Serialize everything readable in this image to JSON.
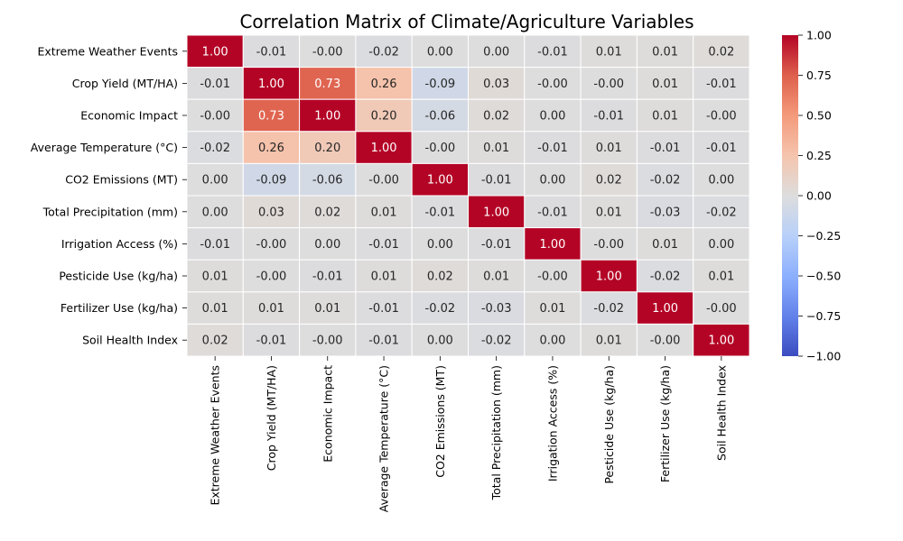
{
  "chart_data": {
    "type": "heatmap",
    "title": "Correlation Matrix of Climate/Agriculture Variables",
    "variables": [
      "Extreme Weather Events",
      "Crop Yield (MT/HA)",
      "Economic Impact",
      "Average Temperature (°C)",
      "CO2 Emissions (MT)",
      "Total Precipitation (mm)",
      "Irrigation Access (%)",
      "Pesticide Use (kg/ha)",
      "Fertilizer Use (kg/ha)",
      "Soil Health Index"
    ],
    "values": [
      [
        1.0,
        -0.01,
        -0.0,
        -0.02,
        0.0,
        0.0,
        -0.01,
        0.01,
        0.01,
        0.02
      ],
      [
        -0.01,
        1.0,
        0.73,
        0.26,
        -0.09,
        0.03,
        -0.0,
        -0.0,
        0.01,
        -0.01
      ],
      [
        -0.0,
        0.73,
        1.0,
        0.2,
        -0.06,
        0.02,
        0.0,
        -0.01,
        0.01,
        -0.0
      ],
      [
        -0.02,
        0.26,
        0.2,
        1.0,
        -0.0,
        0.01,
        -0.01,
        0.01,
        -0.01,
        -0.01
      ],
      [
        0.0,
        -0.09,
        -0.06,
        -0.0,
        1.0,
        -0.01,
        0.0,
        0.02,
        -0.02,
        0.0
      ],
      [
        0.0,
        0.03,
        0.02,
        0.01,
        -0.01,
        1.0,
        -0.01,
        0.01,
        -0.03,
        -0.02
      ],
      [
        -0.01,
        -0.0,
        0.0,
        -0.01,
        0.0,
        -0.01,
        1.0,
        -0.0,
        0.01,
        0.0
      ],
      [
        0.01,
        -0.0,
        -0.01,
        0.01,
        0.02,
        0.01,
        -0.0,
        1.0,
        -0.02,
        0.01
      ],
      [
        0.01,
        0.01,
        0.01,
        -0.01,
        -0.02,
        -0.03,
        0.01,
        -0.02,
        1.0,
        -0.0
      ],
      [
        0.02,
        -0.01,
        -0.0,
        -0.01,
        0.0,
        -0.02,
        0.0,
        0.01,
        -0.0,
        1.0
      ]
    ],
    "value_labels": [
      [
        "1.00",
        "-0.01",
        "-0.00",
        "-0.02",
        "0.00",
        "0.00",
        "-0.01",
        "0.01",
        "0.01",
        "0.02"
      ],
      [
        "-0.01",
        "1.00",
        "0.73",
        "0.26",
        "-0.09",
        "0.03",
        "-0.00",
        "-0.00",
        "0.01",
        "-0.01"
      ],
      [
        "-0.00",
        "0.73",
        "1.00",
        "0.20",
        "-0.06",
        "0.02",
        "0.00",
        "-0.01",
        "0.01",
        "-0.00"
      ],
      [
        "-0.02",
        "0.26",
        "0.20",
        "1.00",
        "-0.00",
        "0.01",
        "-0.01",
        "0.01",
        "-0.01",
        "-0.01"
      ],
      [
        "0.00",
        "-0.09",
        "-0.06",
        "-0.00",
        "1.00",
        "-0.01",
        "0.00",
        "0.02",
        "-0.02",
        "0.00"
      ],
      [
        "0.00",
        "0.03",
        "0.02",
        "0.01",
        "-0.01",
        "1.00",
        "-0.01",
        "0.01",
        "-0.03",
        "-0.02"
      ],
      [
        "-0.01",
        "-0.00",
        "0.00",
        "-0.01",
        "0.00",
        "-0.01",
        "1.00",
        "-0.00",
        "0.01",
        "0.00"
      ],
      [
        "0.01",
        "-0.00",
        "-0.01",
        "0.01",
        "0.02",
        "0.01",
        "-0.00",
        "1.00",
        "-0.02",
        "0.01"
      ],
      [
        "0.01",
        "0.01",
        "0.01",
        "-0.01",
        "-0.02",
        "-0.03",
        "0.01",
        "-0.02",
        "1.00",
        "-0.00"
      ],
      [
        "0.02",
        "-0.01",
        "-0.00",
        "-0.01",
        "0.00",
        "-0.02",
        "0.00",
        "0.01",
        "-0.00",
        "1.00"
      ]
    ],
    "colorbar": {
      "range": [
        -1.0,
        1.0
      ],
      "ticks": [
        -1.0,
        -0.75,
        -0.5,
        -0.25,
        0.0,
        0.25,
        0.5,
        0.75,
        1.0
      ],
      "tick_labels": [
        "−1.00",
        "−0.75",
        "−0.50",
        "−0.25",
        "0.00",
        "0.25",
        "0.50",
        "0.75",
        "1.00"
      ],
      "colormap": "coolwarm",
      "low_color": "#3b4cc0",
      "mid_color": "#dddcdc",
      "high_color": "#b40426"
    },
    "legend_placement": "right"
  }
}
